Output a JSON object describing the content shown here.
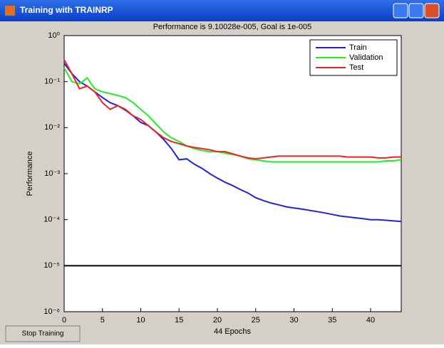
{
  "window": {
    "title": "Training with TRAINRP",
    "button": "Stop Training"
  },
  "chart_data": {
    "type": "line",
    "title": "Performance is 9.10028e-005, Goal is 1e-005",
    "xlabel": "44 Epochs",
    "ylabel": "Performance",
    "x": [
      0,
      1,
      2,
      3,
      4,
      5,
      6,
      7,
      8,
      9,
      10,
      11,
      12,
      13,
      14,
      15,
      16,
      17,
      18,
      19,
      20,
      21,
      22,
      23,
      24,
      25,
      26,
      27,
      28,
      29,
      30,
      31,
      32,
      33,
      34,
      35,
      36,
      37,
      38,
      39,
      40,
      41,
      42,
      43,
      44
    ],
    "series": [
      {
        "name": "Train",
        "color": "#2222dd",
        "values": [
          0.25,
          0.15,
          0.1,
          0.08,
          0.06,
          0.045,
          0.035,
          0.03,
          0.024,
          0.018,
          0.013,
          0.011,
          0.008,
          0.0055,
          0.0035,
          0.002,
          0.0021,
          0.0016,
          0.0013,
          0.001,
          0.0008,
          0.00065,
          0.00055,
          0.00045,
          0.00038,
          0.0003,
          0.00026,
          0.00023,
          0.00021,
          0.00019,
          0.00018,
          0.00017,
          0.00016,
          0.00015,
          0.00014,
          0.00013,
          0.00012,
          0.000115,
          0.00011,
          0.000105,
          0.0001,
          0.0001,
          9.7e-05,
          9.4e-05,
          9.1e-05
        ]
      },
      {
        "name": "Validation",
        "color": "#22ee22",
        "values": [
          0.2,
          0.1,
          0.09,
          0.12,
          0.07,
          0.06,
          0.055,
          0.05,
          0.045,
          0.035,
          0.025,
          0.018,
          0.012,
          0.008,
          0.006,
          0.005,
          0.004,
          0.0035,
          0.0032,
          0.003,
          0.003,
          0.0028,
          0.0026,
          0.0024,
          0.0021,
          0.002,
          0.0019,
          0.0018,
          0.0018,
          0.0018,
          0.0018,
          0.0018,
          0.0018,
          0.0018,
          0.0018,
          0.0018,
          0.0018,
          0.0018,
          0.0018,
          0.0018,
          0.0018,
          0.0018,
          0.0019,
          0.0019,
          0.002
        ]
      },
      {
        "name": "Test",
        "color": "#ee2222",
        "values": [
          0.3,
          0.15,
          0.07,
          0.08,
          0.06,
          0.035,
          0.025,
          0.03,
          0.025,
          0.018,
          0.015,
          0.011,
          0.008,
          0.006,
          0.005,
          0.0045,
          0.004,
          0.0037,
          0.0035,
          0.0033,
          0.003,
          0.003,
          0.0027,
          0.0024,
          0.0022,
          0.0021,
          0.0022,
          0.0023,
          0.0024,
          0.0024,
          0.0024,
          0.0024,
          0.0024,
          0.0024,
          0.0024,
          0.0024,
          0.0024,
          0.0023,
          0.0023,
          0.0023,
          0.0023,
          0.0022,
          0.0022,
          0.0023,
          0.0023
        ]
      }
    ],
    "goal": 1e-05,
    "goal_color": "#000000",
    "xlim": [
      0,
      44
    ],
    "xticks": [
      0,
      5,
      10,
      15,
      20,
      25,
      30,
      35,
      40
    ],
    "ylim": [
      1e-06,
      1
    ],
    "log_y": true,
    "yticks": [
      {
        "value": 1,
        "label": "10⁰"
      },
      {
        "value": 0.1,
        "label": "10⁻¹"
      },
      {
        "value": 0.01,
        "label": "10⁻²"
      },
      {
        "value": 0.001,
        "label": "10⁻³"
      },
      {
        "value": 0.0001,
        "label": "10⁻⁴"
      },
      {
        "value": 1e-05,
        "label": "10⁻⁵"
      },
      {
        "value": 1e-06,
        "label": "10⁻⁶"
      }
    ],
    "legend": "top-right"
  }
}
